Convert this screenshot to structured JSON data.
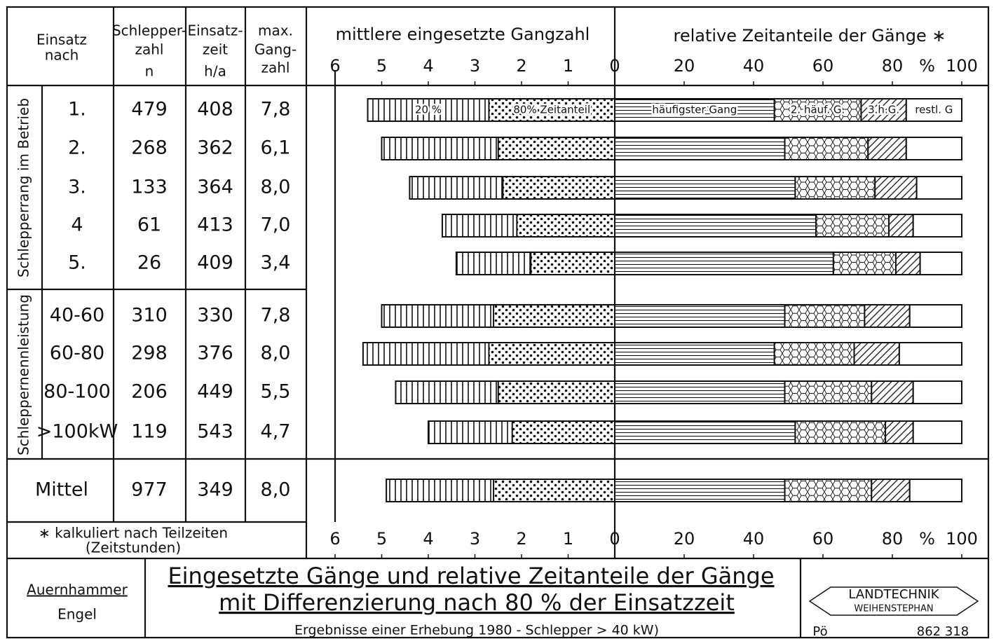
{
  "table": {
    "header": {
      "einsatz": [
        "Einsatz",
        "nach"
      ],
      "zahl": [
        "Schlepper-",
        "zahl",
        "n"
      ],
      "zeit": [
        "Einsatz-",
        "zeit",
        "h/a"
      ],
      "gang": [
        "max.",
        "Gang-",
        "zahl"
      ]
    },
    "groups": [
      "Schlepperrang im Betrieb",
      "Schleppernennleistung"
    ],
    "rows": [
      [
        "479",
        "408",
        "7,8"
      ],
      [
        "268",
        "362",
        "6,1"
      ],
      [
        "133",
        "364",
        "8,0"
      ],
      [
        "61",
        "413",
        "7,0"
      ],
      [
        "26",
        "409",
        "3,4"
      ],
      [
        "310",
        "330",
        "7,8"
      ],
      [
        "298",
        "376",
        "8,0"
      ],
      [
        "206",
        "449",
        "5,5"
      ],
      [
        "119",
        "543",
        "4,7"
      ],
      [
        "977",
        "349",
        "8,0"
      ]
    ],
    "footnote": [
      "∗ kalkuliert nach Teilzeiten",
      "(Zeitstunden)"
    ]
  },
  "chart_data": {
    "type": "bar",
    "title": "mittlere eingesetzte Gangzahl",
    "title2": "relative Zeitanteile der Gänge ∗",
    "categories": [
      "1.",
      "2.",
      "3.",
      "4",
      "5.",
      "40-60",
      "60-80",
      "80-100",
      ">100kW",
      "Mittel"
    ],
    "xlim": [
      6,
      0
    ],
    "xticks": [
      6,
      5,
      4,
      3,
      2,
      1,
      0
    ],
    "x2lim": [
      0,
      100
    ],
    "x2ticks": [
      20,
      40,
      60,
      80,
      100
    ],
    "x2unit": "%",
    "series": [
      {
        "name": "20 %",
        "values": [
          5.3,
          5.0,
          4.4,
          3.7,
          3.4,
          5.0,
          5.4,
          4.7,
          4.0,
          4.9
        ]
      },
      {
        "name": "80% Zeitanteil",
        "values": [
          2.7,
          2.5,
          2.4,
          2.1,
          1.8,
          2.6,
          2.7,
          2.5,
          2.2,
          2.6
        ]
      },
      {
        "name": "häufigster Gang",
        "axis": "x2",
        "values": [
          46,
          49,
          52,
          58,
          63,
          49,
          46,
          49,
          52,
          49
        ]
      },
      {
        "name": "2. häuf. G.",
        "axis": "x2",
        "values": [
          25,
          24,
          23,
          21,
          18,
          23,
          23,
          25,
          26,
          25
        ]
      },
      {
        "name": "3.h.G.",
        "axis": "x2",
        "values": [
          13,
          11,
          12,
          7,
          7,
          13,
          13,
          12,
          8,
          11
        ]
      },
      {
        "name": "restl. G",
        "axis": "x2",
        "values": [
          16,
          16,
          13,
          14,
          12,
          15,
          18,
          14,
          14,
          15
        ]
      }
    ]
  },
  "footer": {
    "authors": [
      "Auernhammer",
      "Engel"
    ],
    "title": [
      "Eingesetzte Gänge und relative Zeitanteile der Gänge",
      "mit Differenzierung nach 80 % der Einsatzzeit"
    ],
    "subtitle": "Ergebnisse einer Erhebung 1980 - Schlepper > 40 kW)",
    "logo": [
      "LANDTECHNIK",
      "WEIHENSTEPHAN"
    ],
    "code_left": "Pö",
    "code_right": "862 318"
  }
}
